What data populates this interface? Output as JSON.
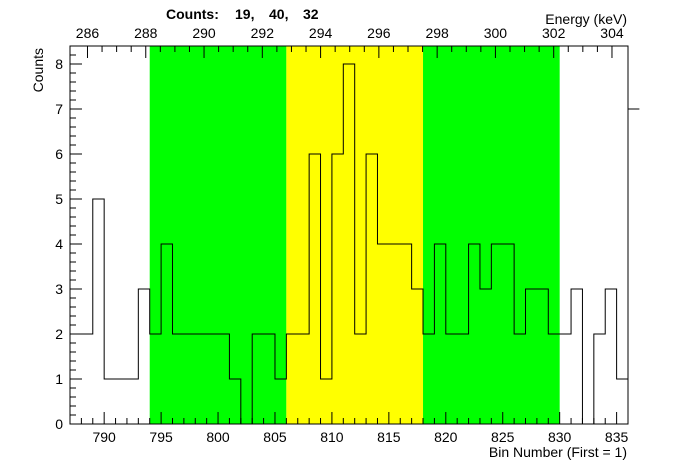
{
  "chart_data": {
    "type": "histogram",
    "title_prefix": "Counts:",
    "title_values": [
      "19,",
      "40,",
      "32"
    ],
    "xlabel": "Bin Number (First = 1)",
    "ylabel": "Counts",
    "x2label": "Energy (keV)",
    "xlim": [
      787,
      836
    ],
    "ylim": [
      0,
      8.4
    ],
    "x_ticks": [
      790,
      795,
      800,
      805,
      810,
      815,
      820,
      825,
      830,
      835
    ],
    "y_ticks": [
      0,
      1,
      2,
      3,
      4,
      5,
      6,
      7,
      8
    ],
    "x2_ticks": [
      286,
      288,
      290,
      292,
      294,
      296,
      298,
      300,
      302,
      304
    ],
    "energy_calibration": {
      "bin": [
        787,
        836
      ],
      "kev": [
        285.4,
        304.55
      ]
    },
    "regions": [
      {
        "name": "background-left",
        "from": 794,
        "to": 806,
        "color": "#00ff00"
      },
      {
        "name": "peak",
        "from": 806,
        "to": 818,
        "color": "#ffff00"
      },
      {
        "name": "background-right",
        "from": 818,
        "to": 830,
        "color": "#00ff00"
      }
    ],
    "bins_start": 787,
    "values": [
      2,
      2,
      5,
      1,
      1,
      1,
      3,
      2,
      4,
      2,
      2,
      2,
      2,
      2,
      1,
      0,
      2,
      2,
      1,
      2,
      2,
      6,
      1,
      6,
      8,
      2,
      6,
      4,
      4,
      4,
      3,
      2,
      4,
      2,
      2,
      4,
      3,
      4,
      4,
      2,
      3,
      3,
      2,
      2,
      3,
      0,
      2,
      3,
      1,
      7
    ]
  }
}
